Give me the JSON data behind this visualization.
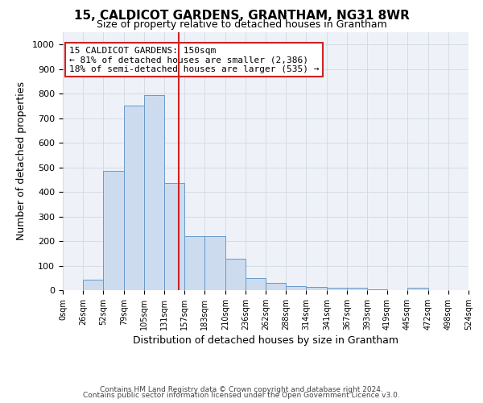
{
  "title": "15, CALDICOT GARDENS, GRANTHAM, NG31 8WR",
  "subtitle": "Size of property relative to detached houses in Grantham",
  "xlabel": "Distribution of detached houses by size in Grantham",
  "ylabel": "Number of detached properties",
  "bar_color": "#ccdcee",
  "bar_edge_color": "#6699cc",
  "grid_color": "#d0d8e0",
  "background_color": "#eef2f8",
  "vline_x": 150,
  "vline_color": "#cc2222",
  "annotation_line1": "15 CALDICOT GARDENS: 150sqm",
  "annotation_line2": "← 81% of detached houses are smaller (2,386)",
  "annotation_line3": "18% of semi-detached houses are larger (535) →",
  "annotation_box_facecolor": "#ffffff",
  "annotation_box_edgecolor": "#cc2222",
  "bin_edges": [
    0,
    26,
    52,
    79,
    105,
    131,
    157,
    183,
    210,
    236,
    262,
    288,
    314,
    341,
    367,
    393,
    419,
    445,
    472,
    498,
    524
  ],
  "bar_heights": [
    0,
    42,
    485,
    750,
    795,
    437,
    220,
    220,
    127,
    50,
    28,
    15,
    13,
    10,
    10,
    2,
    0,
    10,
    0,
    0
  ],
  "xtick_labels": [
    "0sqm",
    "26sqm",
    "52sqm",
    "79sqm",
    "105sqm",
    "131sqm",
    "157sqm",
    "183sqm",
    "210sqm",
    "236sqm",
    "262sqm",
    "288sqm",
    "314sqm",
    "341sqm",
    "367sqm",
    "393sqm",
    "419sqm",
    "445sqm",
    "472sqm",
    "498sqm",
    "524sqm"
  ],
  "ylim": [
    0,
    1050
  ],
  "yticks": [
    0,
    100,
    200,
    300,
    400,
    500,
    600,
    700,
    800,
    900,
    1000
  ],
  "footer1": "Contains HM Land Registry data © Crown copyright and database right 2024.",
  "footer2": "Contains public sector information licensed under the Open Government Licence v3.0.",
  "title_fontsize": 11,
  "subtitle_fontsize": 9,
  "xlabel_fontsize": 9,
  "ylabel_fontsize": 9,
  "xtick_fontsize": 7,
  "ytick_fontsize": 8,
  "footer_fontsize": 6.5
}
